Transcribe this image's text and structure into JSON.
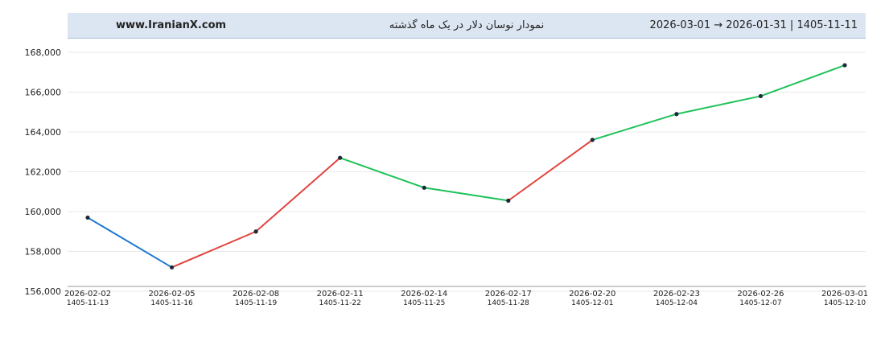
{
  "header": {
    "site": "www.IranianX.com",
    "title": "نمودار نوسان دلار در یک ماه گذشته",
    "range": "2026-03-01  →  2026-01-31  |  1405-11-11"
  },
  "chart_data": {
    "type": "line",
    "title": "نمودار نوسان دلار در یک ماه گذشته",
    "xlabel": "",
    "ylabel": "",
    "x": [
      "2026-02-02",
      "2026-02-05",
      "2026-02-08",
      "2026-02-11",
      "2026-02-14",
      "2026-02-17",
      "2026-02-20",
      "2026-02-23",
      "2026-02-26",
      "2026-03-01"
    ],
    "x_secondary": [
      "1405-11-13",
      "1405-11-16",
      "1405-11-19",
      "1405-11-22",
      "1405-11-25",
      "1405-11-28",
      "1405-12-01",
      "1405-12-04",
      "1405-12-07",
      "1405-12-10"
    ],
    "values": [
      159700,
      157200,
      159000,
      162700,
      161200,
      160550,
      163600,
      164900,
      165800,
      167350
    ],
    "ylim": [
      156000,
      168000
    ],
    "yticks": [
      156000,
      158000,
      160000,
      162000,
      164000,
      166000,
      168000
    ],
    "ytick_labels": [
      "156,000",
      "158,000",
      "160,000",
      "162,000",
      "164,000",
      "166,000",
      "168,000"
    ],
    "grid": true,
    "segment_colors": {
      "first": "#1f78d1",
      "rise": "#e0443e",
      "fall": "#1fc25a",
      "rise_late": "#1fc25a"
    },
    "segment_color_list": [
      "#1f78d1",
      "#e0443e",
      "#e0443e",
      "#1fc25a",
      "#1fc25a",
      "#e0443e",
      "#1fc25a",
      "#1fc25a",
      "#1fc25a"
    ],
    "colors": {
      "grid": "#e8e8e8",
      "axis": "#cccccc",
      "point": "#1a2a3a"
    }
  }
}
